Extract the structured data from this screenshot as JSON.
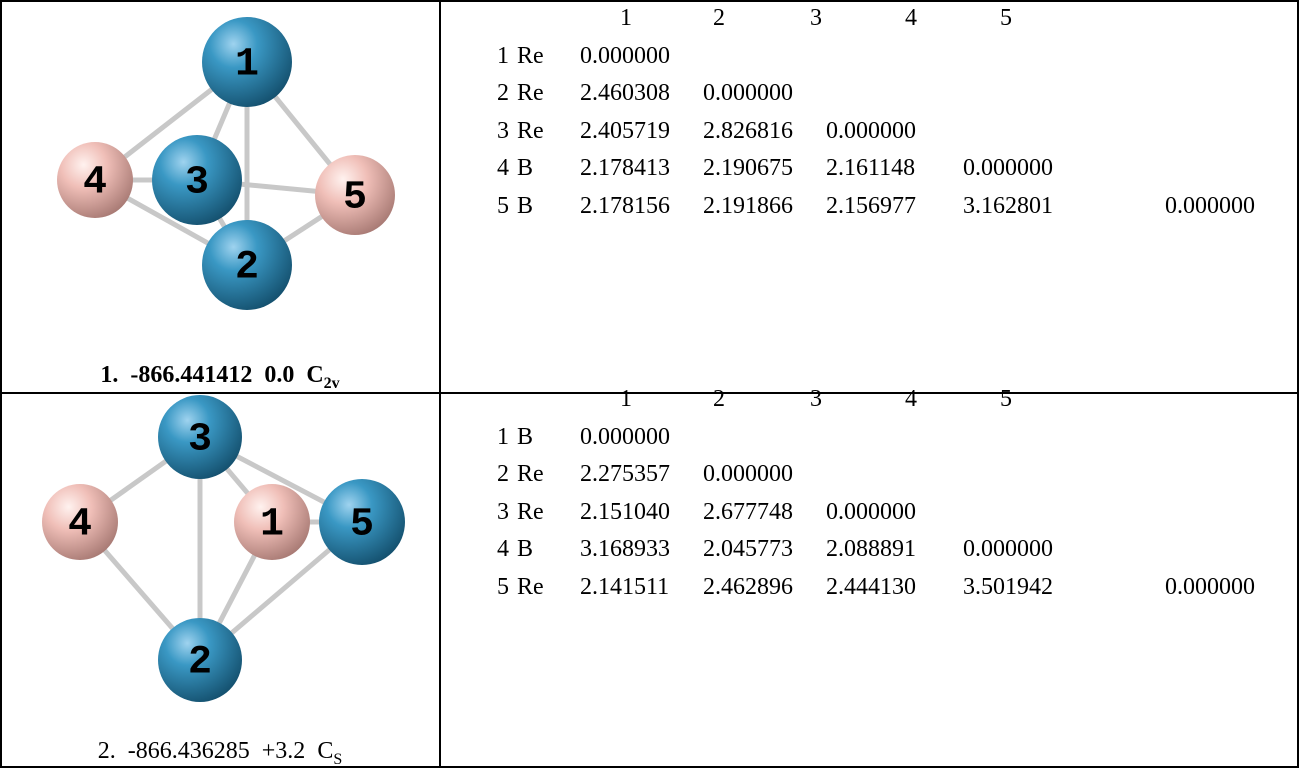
{
  "rows": [
    {
      "molecule": {
        "atoms": [
          "1",
          "2",
          "3",
          "4",
          "5"
        ]
      },
      "caption": {
        "index": "1.",
        "energy": "-866.441412",
        "relative": "0.0",
        "symmetry": "C",
        "symmetry_sub": "2v"
      },
      "matrix": {
        "header": [
          "1",
          "2",
          "3",
          "4",
          "5"
        ],
        "rows": [
          {
            "index": "1",
            "element": "Re",
            "values": [
              "0.000000"
            ]
          },
          {
            "index": "2",
            "element": "Re",
            "values": [
              "2.460308",
              "0.000000"
            ]
          },
          {
            "index": "3",
            "element": "Re",
            "values": [
              "2.405719",
              "2.826816",
              "0.000000"
            ]
          },
          {
            "index": "4",
            "element": "B",
            "values": [
              "2.178413",
              "2.190675",
              "2.161148",
              "0.000000"
            ]
          },
          {
            "index": "5",
            "element": "B",
            "values": [
              "2.178156",
              "2.191866",
              "2.156977",
              "3.162801",
              "0.000000"
            ]
          }
        ]
      }
    },
    {
      "molecule": {
        "atoms": [
          "1",
          "2",
          "3",
          "4",
          "5"
        ]
      },
      "caption": {
        "index": "2.",
        "energy": "-866.436285",
        "relative": "+3.2",
        "symmetry": "C",
        "symmetry_sub": "S"
      },
      "matrix": {
        "header": [
          "1",
          "2",
          "3",
          "4",
          "5"
        ],
        "rows": [
          {
            "index": "1",
            "element": "B",
            "values": [
              "0.000000"
            ]
          },
          {
            "index": "2",
            "element": "Re",
            "values": [
              "2.275357",
              "0.000000"
            ]
          },
          {
            "index": "3",
            "element": "Re",
            "values": [
              "2.151040",
              "2.677748",
              "0.000000"
            ]
          },
          {
            "index": "4",
            "element": "B",
            "values": [
              "3.168933",
              "2.045773",
              "2.088891",
              "0.000000"
            ]
          },
          {
            "index": "5",
            "element": "Re",
            "values": [
              "2.141511",
              "2.462896",
              "2.444130",
              "3.501942",
              "0.000000"
            ]
          }
        ]
      }
    }
  ]
}
